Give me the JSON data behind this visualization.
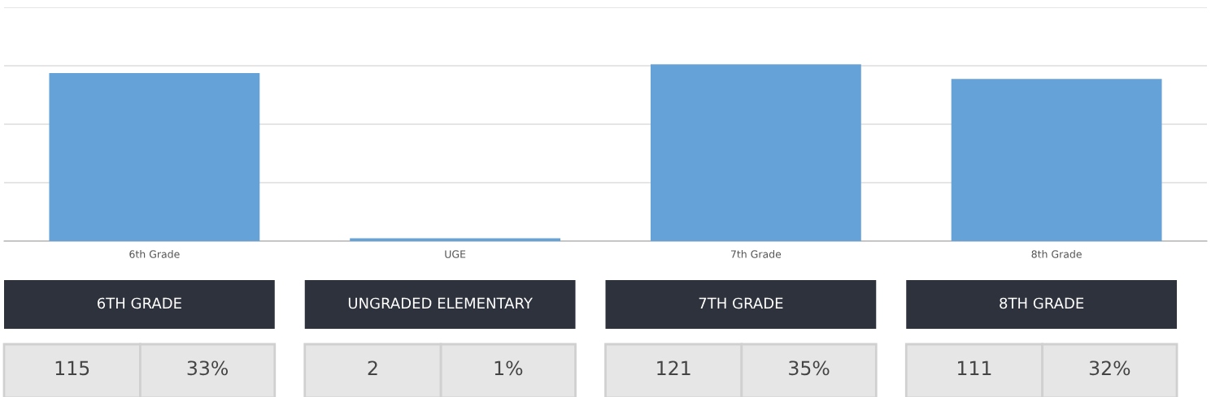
{
  "chart_data": {
    "type": "bar",
    "categories": [
      "6th Grade",
      "UGE",
      "7th Grade",
      "8th Grade"
    ],
    "values": [
      115,
      2,
      121,
      111
    ],
    "color": "#65a2d7",
    "data_labels": true,
    "ylim": [
      0,
      160
    ],
    "yticks": [
      {
        "value": 0,
        "label": null
      },
      {
        "value": 40,
        "label": null
      },
      {
        "value": 80,
        "label": null
      },
      {
        "value": 120,
        "label": null
      },
      {
        "value": 160,
        "label": null
      }
    ],
    "grid": "y",
    "tick_labels": "x",
    "annotations": [
      "6TH GRADE",
      "UNGRADED ELEMENTARY",
      "7TH GRADE",
      "8TH GRADE",
      "33%",
      "1%",
      "35%",
      "32%"
    ]
  }
}
